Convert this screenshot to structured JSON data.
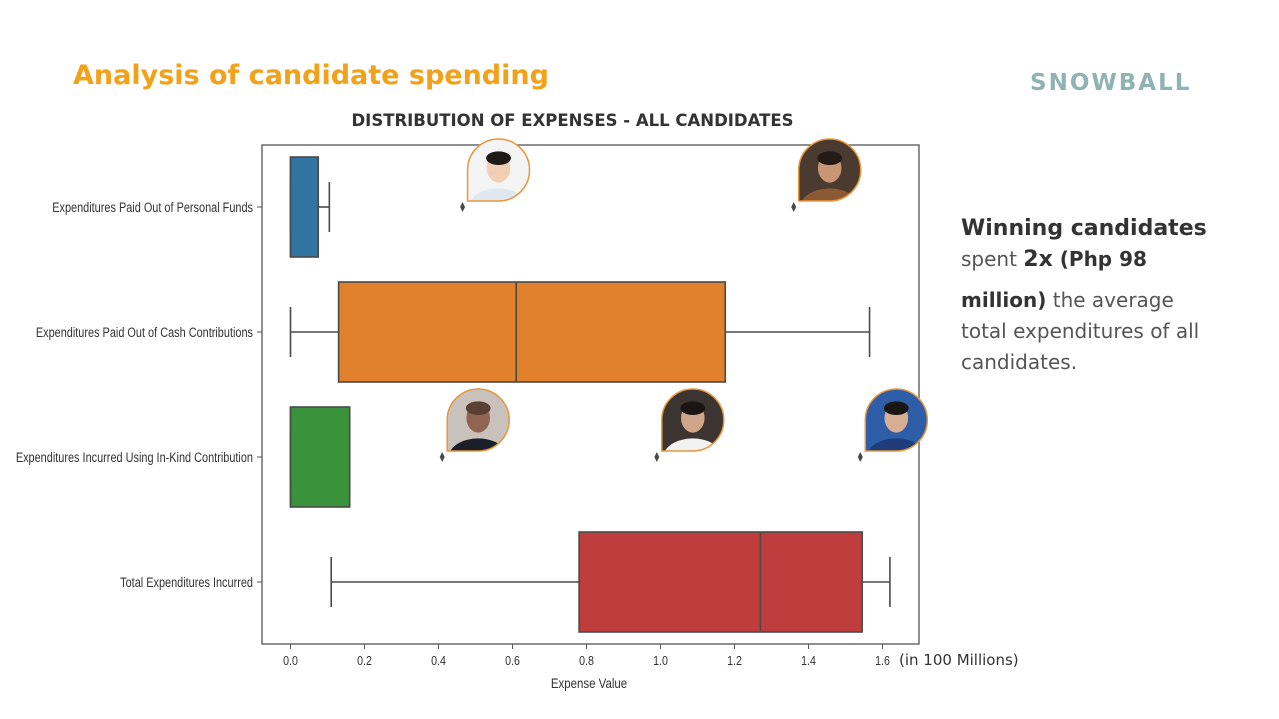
{
  "slide": {
    "title": "Analysis of candidate spending",
    "brand": "SNOWBALL",
    "unit_note": "(in 100 Millions)"
  },
  "callout": {
    "bold_lead": "Winning candidates",
    "word_spent": "spent",
    "multiplier": "2x",
    "paren_open": " (",
    "amount": "Php 98",
    "amount_cont": "million)",
    "rest": "the average total expenditures of all candidates."
  },
  "colors": {
    "accent": "#f2a11b",
    "brand": "#8fb3b3",
    "photo_ring": "#e8963a"
  },
  "chart_data": {
    "type": "box",
    "title": "DISTRIBUTION OF EXPENSES - ALL CANDIDATES",
    "xlabel": "Expense Value",
    "ylabel": "",
    "xlim": [
      -0.08,
      1.71
    ],
    "xticks": [
      0.0,
      0.2,
      0.4,
      0.6,
      0.8,
      1.0,
      1.2,
      1.4,
      1.6
    ],
    "xtick_labels": [
      "0.0",
      "0.2",
      "0.4",
      "0.6",
      "0.8",
      "1.0",
      "1.2",
      "1.4",
      "1.6"
    ],
    "grid": false,
    "orientation": "horizontal",
    "categories": [
      "Expenditures Paid Out of Personal Funds",
      "Expenditures Paid Out of Cash Contributions",
      "Expenditures Incurred Using In-Kind Contribution",
      "Total Expenditures Incurred"
    ],
    "boxes": [
      {
        "whisker_low": 0.0,
        "q1": 0.0,
        "median": 0.0,
        "q3": 0.075,
        "whisker_high": 0.105,
        "outliers": [
          0.465,
          1.36
        ],
        "color": "#3274a1"
      },
      {
        "whisker_low": 0.0,
        "q1": 0.13,
        "median": 0.61,
        "q3": 1.175,
        "whisker_high": 1.565,
        "outliers": [],
        "color": "#e1812c"
      },
      {
        "whisker_low": 0.0,
        "q1": 0.0,
        "median": 0.0,
        "q3": 0.16,
        "whisker_high": 0.16,
        "outliers": [
          0.41,
          0.99,
          1.54
        ],
        "color": "#3a923a"
      },
      {
        "whisker_low": 0.11,
        "q1": 0.78,
        "median": 1.27,
        "q3": 1.545,
        "whisker_high": 1.62,
        "outliers": [],
        "color": "#c03d3e"
      }
    ]
  },
  "photos": [
    {
      "row": 0,
      "value": 0.465,
      "icon": "candidate-photo",
      "skin": "#f1cfb4",
      "hair": "#1e1a18",
      "shirt": "#dfe7f0",
      "bg": "#f4f4f4"
    },
    {
      "row": 0,
      "value": 1.36,
      "icon": "candidate-photo",
      "skin": "#c89575",
      "hair": "#241a16",
      "shirt": "#8b5a34",
      "bg": "#4a3a30"
    },
    {
      "row": 2,
      "value": 0.41,
      "icon": "candidate-photo",
      "skin": "#8f6450",
      "hair": "#5a4033",
      "shirt": "#1b1f2a",
      "bg": "#c9c2bc"
    },
    {
      "row": 2,
      "value": 0.99,
      "icon": "candidate-photo",
      "skin": "#d0a68a",
      "hair": "#1b1614",
      "shirt": "#f2f2f2",
      "bg": "#3c3430"
    },
    {
      "row": 2,
      "value": 1.54,
      "icon": "candidate-photo",
      "skin": "#d8ae92",
      "hair": "#1a1614",
      "shirt": "#1e3b7a",
      "bg": "#2f5ea8"
    }
  ]
}
